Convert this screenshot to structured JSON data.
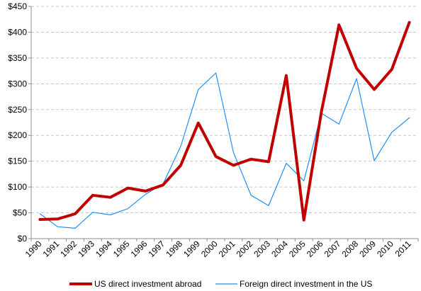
{
  "chart_data": {
    "type": "line",
    "title": "",
    "xlabel": "",
    "ylabel": "",
    "ylim": [
      0,
      450
    ],
    "y_ticks": [
      "$0",
      "$50",
      "$100",
      "$150",
      "$200",
      "$250",
      "$300",
      "$350",
      "$400",
      "$450"
    ],
    "y_tick_values": [
      0,
      50,
      100,
      150,
      200,
      250,
      300,
      350,
      400,
      450
    ],
    "categories": [
      "1990",
      "1991",
      "1992",
      "1993",
      "1994",
      "1995",
      "1996",
      "1997",
      "1998",
      "1999",
      "2000",
      "2001",
      "2002",
      "2003",
      "2004",
      "2005",
      "2006",
      "2007",
      "2008",
      "2009",
      "2010",
      "2011"
    ],
    "grid": "horizontal dashed",
    "legend_position": "bottom",
    "series": [
      {
        "name": "US direct investment abroad",
        "color": "#C00000",
        "values": [
          37,
          38,
          48,
          84,
          80,
          98,
          92,
          104,
          142,
          224,
          159,
          142,
          154,
          149,
          316,
          36,
          246,
          414,
          330,
          289,
          328,
          419
        ]
      },
      {
        "name": "Foreign direct investment in the US",
        "color": "#1E90FF",
        "values": [
          48,
          23,
          20,
          51,
          46,
          58,
          86,
          106,
          179,
          289,
          321,
          167,
          84,
          64,
          146,
          112,
          243,
          222,
          310,
          151,
          206,
          234
        ]
      }
    ]
  }
}
